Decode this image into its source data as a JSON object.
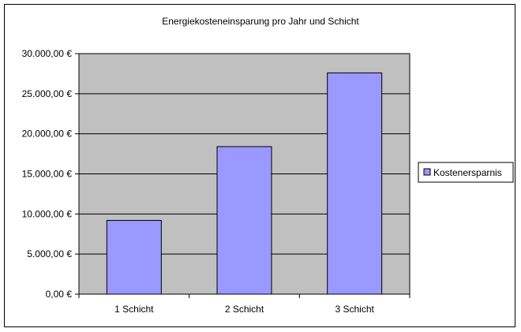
{
  "chart_data": {
    "type": "bar",
    "title": "Energiekosteneinsparung pro Jahr und Schicht",
    "categories": [
      "1 Schicht",
      "2 Schicht",
      "3 Schicht"
    ],
    "series": [
      {
        "name": "Kostenersparnis",
        "values": [
          9200,
          18400,
          27600
        ]
      }
    ],
    "ylim": [
      0,
      30000
    ],
    "yticks": [
      0,
      5000,
      10000,
      15000,
      20000,
      25000,
      30000
    ],
    "ytick_labels": [
      "0,00 €",
      "5.000,00 €",
      "10.000,00 €",
      "15.000,00 €",
      "20.000,00 €",
      "25.000,00 €",
      "30.000,00 €"
    ],
    "grid": true,
    "legend": "right",
    "colors": {
      "bar_fill": "#9999ff",
      "plot_background": "#c0c0c0",
      "gridline": "#000000",
      "border": "#000000"
    }
  }
}
